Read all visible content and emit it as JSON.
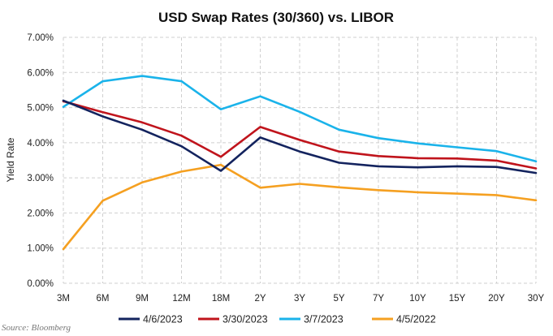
{
  "chart_data": {
    "type": "line",
    "title": "USD Swap Rates (30/360) vs. LIBOR",
    "xlabel": "",
    "ylabel": "Yield Rate",
    "categories": [
      "3M",
      "6M",
      "9M",
      "12M",
      "18M",
      "2Y",
      "3Y",
      "5Y",
      "7Y",
      "10Y",
      "15Y",
      "20Y",
      "30Y"
    ],
    "ylim": [
      0,
      7
    ],
    "yticks": [
      "0.00%",
      "1.00%",
      "2.00%",
      "3.00%",
      "4.00%",
      "5.00%",
      "6.00%",
      "7.00%"
    ],
    "grid": true,
    "legend_position": "bottom",
    "series": [
      {
        "name": "4/6/2023",
        "color": "#13235e",
        "values": [
          5.2,
          4.75,
          4.37,
          3.9,
          3.2,
          4.15,
          3.75,
          3.43,
          3.33,
          3.3,
          3.33,
          3.31,
          3.14
        ]
      },
      {
        "name": "3/30/2023",
        "color": "#c0141c",
        "values": [
          5.18,
          4.87,
          4.58,
          4.2,
          3.6,
          4.45,
          4.08,
          3.75,
          3.62,
          3.56,
          3.55,
          3.49,
          3.27
        ]
      },
      {
        "name": "3/7/2023",
        "color": "#1ab3ea",
        "values": [
          5.02,
          5.75,
          5.9,
          5.75,
          4.95,
          5.32,
          4.88,
          4.37,
          4.13,
          3.98,
          3.87,
          3.76,
          3.47
        ]
      },
      {
        "name": "4/5/2022",
        "color": "#f5a021",
        "values": [
          0.97,
          2.35,
          2.87,
          3.18,
          3.37,
          2.72,
          2.83,
          2.73,
          2.65,
          2.59,
          2.55,
          2.51,
          2.36
        ]
      }
    ]
  },
  "source": "Source: Bloomberg"
}
